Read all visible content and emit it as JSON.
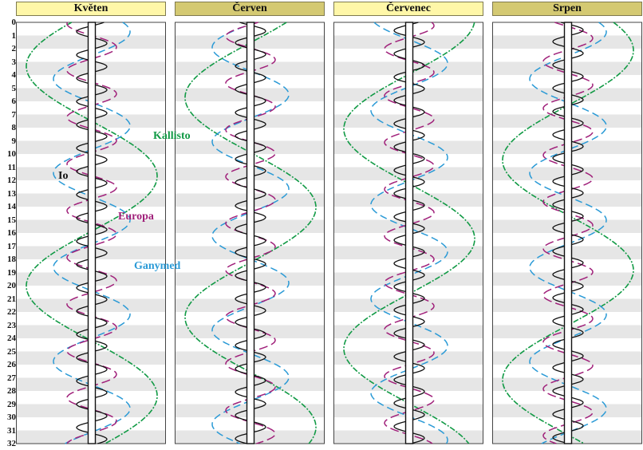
{
  "months": [
    {
      "name": "Květen"
    },
    {
      "name": "Červen"
    },
    {
      "name": "Červenec"
    },
    {
      "name": "Srpen"
    }
  ],
  "days": [
    "0",
    "1",
    "2",
    "3",
    "4",
    "5",
    "6",
    "7",
    "8",
    "9",
    "10",
    "11",
    "12",
    "13",
    "14",
    "15",
    "16",
    "17",
    "18",
    "19",
    "20",
    "21",
    "22",
    "23",
    "24",
    "25",
    "26",
    "27",
    "28",
    "29",
    "30",
    "31",
    "32"
  ],
  "moons": {
    "io": {
      "label": "Io",
      "color": "#111111"
    },
    "europa": {
      "label": "Europa",
      "color": "#a0207a"
    },
    "ganymed": {
      "label": "Ganymed",
      "color": "#2a9ad6"
    },
    "kallisto": {
      "label": "Kallisto",
      "color": "#119a45"
    }
  },
  "colors": {
    "band": "#e6e6e6",
    "header": "#fff7a8",
    "header_dark": "#d4c972"
  }
}
